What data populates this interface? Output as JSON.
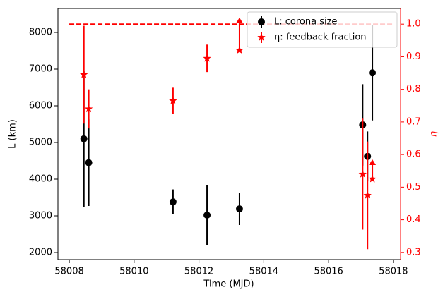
{
  "chart_data": {
    "type": "errorbar",
    "xlabel": "Time (MJD)",
    "ylabel": "L (km)",
    "y2label": "η",
    "xlim": [
      58007.65,
      58018.22
    ],
    "xticks": [
      58008,
      58010,
      58012,
      58014,
      58016,
      58018
    ],
    "ylim": [
      1808,
      8654
    ],
    "yticks": [
      2000,
      3000,
      4000,
      5000,
      6000,
      7000,
      8000
    ],
    "y2lim": [
      0.278,
      1.048
    ],
    "y2ticks": [
      0.3,
      0.4,
      0.5,
      0.6,
      0.7,
      0.8,
      0.9,
      {
        "value": 1,
        "label": "1.0"
      }
    ],
    "y2color": "#ff0000",
    "legend": "upper right",
    "series": [
      {
        "name": "L: corona size",
        "color": "#000000",
        "marker": "circle",
        "axis": "y",
        "x": [
          58008.45,
          58008.6,
          58011.2,
          58012.25,
          58013.25,
          58017.05,
          58017.2,
          58017.35
        ],
        "values": [
          5100,
          4450,
          3380,
          3020,
          3190,
          5480,
          4620,
          6900
        ],
        "errors": [
          1850,
          1180,
          340,
          820,
          440,
          1110,
          680,
          1300
        ],
        "lolims": [
          false,
          false,
          false,
          false,
          false,
          false,
          false,
          false
        ]
      },
      {
        "name": "η: feedback fraction",
        "color": "#ff0000",
        "marker": "star",
        "axis": "y2",
        "x": [
          58008.45,
          58008.6,
          58011.2,
          58012.25,
          58013.25,
          58017.05,
          58017.2,
          58017.35
        ],
        "values": [
          0.845,
          0.74,
          0.765,
          0.895,
          0.92,
          0.54,
          0.475,
          0.525
        ],
        "errors": [
          0.15,
          0.06,
          0.04,
          0.042,
          0.1,
          0.17,
          0.165,
          0.06
        ],
        "lolims": [
          false,
          false,
          false,
          false,
          true,
          false,
          false,
          true
        ]
      }
    ],
    "reference_line": {
      "axis": "y2",
      "value": 1,
      "x": [
        58008,
        58018
      ],
      "color": "#ff0000",
      "style": "dashed"
    }
  }
}
